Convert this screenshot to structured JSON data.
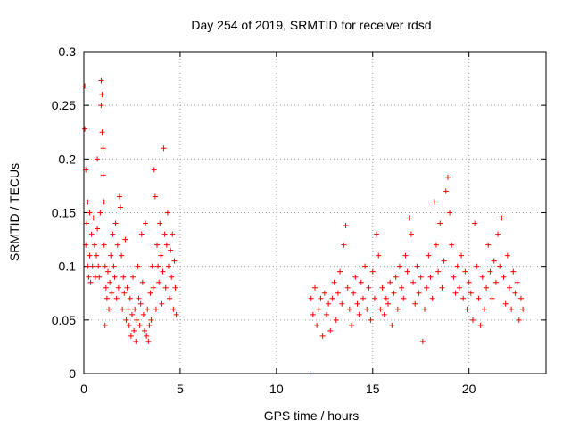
{
  "chart_data": {
    "type": "scatter",
    "title": "Day 254 of 2019, SRMTID for receiver rdsd",
    "xlabel": "GPS time / hours",
    "ylabel": "SRMTID / TECUs",
    "xlim": [
      0,
      24
    ],
    "ylim": [
      0,
      0.3
    ],
    "xticks": [
      0,
      5,
      10,
      15,
      20
    ],
    "xtick_labels": [
      "0",
      "5",
      "10",
      "15",
      "20"
    ],
    "yticks": [
      0,
      0.05,
      0.1,
      0.15,
      0.2,
      0.25,
      0.3
    ],
    "ytick_labels": [
      "0",
      "0.05",
      "0.1",
      "0.15",
      "0.2",
      "0.25",
      "0.3"
    ],
    "grid": true,
    "marker": "+",
    "color": "#ff0000",
    "series": [
      {
        "name": "SRMTID",
        "points": [
          [
            0.05,
            0.268
          ],
          [
            0.05,
            0.228
          ],
          [
            0.1,
            0.19
          ],
          [
            0.1,
            0.12
          ],
          [
            0.15,
            0.14
          ],
          [
            0.2,
            0.16
          ],
          [
            0.2,
            0.1
          ],
          [
            0.25,
            0.09
          ],
          [
            0.3,
            0.15
          ],
          [
            0.3,
            0.11
          ],
          [
            0.35,
            0.085
          ],
          [
            0.4,
            0.13
          ],
          [
            0.45,
            0.1
          ],
          [
            0.5,
            0.145
          ],
          [
            0.55,
            0.12
          ],
          [
            0.6,
            0.09
          ],
          [
            0.65,
            0.11
          ],
          [
            0.7,
            0.2
          ],
          [
            0.7,
            0.135
          ],
          [
            0.75,
            0.1
          ],
          [
            0.8,
            0.09
          ],
          [
            0.85,
            0.15
          ],
          [
            0.9,
            0.273
          ],
          [
            0.9,
            0.25
          ],
          [
            0.95,
            0.26
          ],
          [
            0.95,
            0.225
          ],
          [
            1.0,
            0.21
          ],
          [
            1.0,
            0.185
          ],
          [
            1.05,
            0.16
          ],
          [
            1.05,
            0.12
          ],
          [
            1.1,
            0.1
          ],
          [
            1.1,
            0.045
          ],
          [
            1.15,
            0.08
          ],
          [
            1.2,
            0.07
          ],
          [
            1.25,
            0.095
          ],
          [
            1.3,
            0.06
          ],
          [
            1.35,
            0.085
          ],
          [
            1.4,
            0.11
          ],
          [
            1.45,
            0.075
          ],
          [
            1.5,
            0.13
          ],
          [
            1.55,
            0.1
          ],
          [
            1.6,
            0.09
          ],
          [
            1.65,
            0.14
          ],
          [
            1.7,
            0.07
          ],
          [
            1.75,
            0.12
          ],
          [
            1.8,
            0.08
          ],
          [
            1.85,
            0.165
          ],
          [
            1.9,
            0.155
          ],
          [
            1.95,
            0.11
          ],
          [
            2.0,
            0.06
          ],
          [
            2.05,
            0.09
          ],
          [
            2.1,
            0.075
          ],
          [
            2.15,
            0.125
          ],
          [
            2.2,
            0.05
          ],
          [
            2.25,
            0.08
          ],
          [
            2.3,
            0.06
          ],
          [
            2.35,
            0.045
          ],
          [
            2.4,
            0.07
          ],
          [
            2.45,
            0.035
          ],
          [
            2.5,
            0.055
          ],
          [
            2.55,
            0.09
          ],
          [
            2.6,
            0.04
          ],
          [
            2.65,
            0.06
          ],
          [
            2.7,
            0.03
          ],
          [
            2.75,
            0.05
          ],
          [
            2.8,
            0.1
          ],
          [
            2.85,
            0.07
          ],
          [
            2.9,
            0.045
          ],
          [
            2.95,
            0.065
          ],
          [
            3.0,
            0.13
          ],
          [
            3.05,
            0.085
          ],
          [
            3.1,
            0.055
          ],
          [
            3.15,
            0.04
          ],
          [
            3.2,
            0.14
          ],
          [
            3.25,
            0.035
          ],
          [
            3.3,
            0.06
          ],
          [
            3.35,
            0.03
          ],
          [
            3.4,
            0.045
          ],
          [
            3.45,
            0.075
          ],
          [
            3.5,
            0.05
          ],
          [
            3.55,
            0.1
          ],
          [
            3.6,
            0.08
          ],
          [
            3.65,
            0.19
          ],
          [
            3.7,
            0.165
          ],
          [
            3.75,
            0.06
          ],
          [
            3.8,
            0.12
          ],
          [
            3.85,
            0.1
          ],
          [
            3.9,
            0.085
          ],
          [
            3.95,
            0.14
          ],
          [
            4.0,
            0.11
          ],
          [
            4.05,
            0.065
          ],
          [
            4.1,
            0.095
          ],
          [
            4.15,
            0.21
          ],
          [
            4.2,
            0.13
          ],
          [
            4.25,
            0.08
          ],
          [
            4.3,
            0.12
          ],
          [
            4.35,
            0.15
          ],
          [
            4.4,
            0.1
          ],
          [
            4.45,
            0.07
          ],
          [
            4.5,
            0.115
          ],
          [
            4.55,
            0.09
          ],
          [
            4.6,
            0.13
          ],
          [
            4.65,
            0.06
          ],
          [
            4.7,
            0.105
          ],
          [
            4.75,
            0.08
          ],
          [
            4.8,
            0.055
          ],
          [
            11.75,
            0.0
          ],
          [
            11.8,
            0.07
          ],
          [
            11.9,
            0.055
          ],
          [
            12.0,
            0.08
          ],
          [
            12.1,
            0.045
          ],
          [
            12.2,
            0.06
          ],
          [
            12.3,
            0.07
          ],
          [
            12.4,
            0.035
          ],
          [
            12.5,
            0.075
          ],
          [
            12.6,
            0.055
          ],
          [
            12.7,
            0.065
          ],
          [
            12.8,
            0.04
          ],
          [
            12.9,
            0.07
          ],
          [
            13.0,
            0.085
          ],
          [
            13.1,
            0.05
          ],
          [
            13.2,
            0.075
          ],
          [
            13.3,
            0.095
          ],
          [
            13.4,
            0.065
          ],
          [
            13.5,
            0.12
          ],
          [
            13.6,
            0.138
          ],
          [
            13.7,
            0.08
          ],
          [
            13.8,
            0.06
          ],
          [
            13.9,
            0.045
          ],
          [
            14.0,
            0.075
          ],
          [
            14.1,
            0.09
          ],
          [
            14.2,
            0.065
          ],
          [
            14.3,
            0.055
          ],
          [
            14.4,
            0.085
          ],
          [
            14.5,
            0.07
          ],
          [
            14.6,
            0.1
          ],
          [
            14.7,
            0.06
          ],
          [
            14.8,
            0.08
          ],
          [
            14.9,
            0.05
          ],
          [
            15.0,
            0.095
          ],
          [
            15.1,
            0.07
          ],
          [
            15.2,
            0.13
          ],
          [
            15.3,
            0.11
          ],
          [
            15.4,
            0.06
          ],
          [
            15.5,
            0.08
          ],
          [
            15.6,
            0.055
          ],
          [
            15.7,
            0.07
          ],
          [
            15.8,
            0.065
          ],
          [
            15.9,
            0.085
          ],
          [
            16.0,
            0.045
          ],
          [
            16.1,
            0.075
          ],
          [
            16.2,
            0.09
          ],
          [
            16.3,
            0.06
          ],
          [
            16.4,
            0.1
          ],
          [
            16.5,
            0.08
          ],
          [
            16.6,
            0.07
          ],
          [
            16.7,
            0.11
          ],
          [
            16.8,
            0.095
          ],
          [
            16.9,
            0.145
          ],
          [
            17.0,
            0.13
          ],
          [
            17.1,
            0.085
          ],
          [
            17.2,
            0.065
          ],
          [
            17.3,
            0.1
          ],
          [
            17.4,
            0.075
          ],
          [
            17.5,
            0.09
          ],
          [
            17.6,
            0.03
          ],
          [
            17.7,
            0.06
          ],
          [
            17.8,
            0.08
          ],
          [
            17.9,
            0.11
          ],
          [
            18.0,
            0.09
          ],
          [
            18.1,
            0.07
          ],
          [
            18.2,
            0.16
          ],
          [
            18.3,
            0.12
          ],
          [
            18.4,
            0.095
          ],
          [
            18.5,
            0.14
          ],
          [
            18.6,
            0.08
          ],
          [
            18.7,
            0.105
          ],
          [
            18.8,
            0.17
          ],
          [
            18.9,
            0.183
          ],
          [
            19.0,
            0.15
          ],
          [
            19.1,
            0.12
          ],
          [
            19.2,
            0.09
          ],
          [
            19.3,
            0.075
          ],
          [
            19.4,
            0.1
          ],
          [
            19.5,
            0.08
          ],
          [
            19.6,
            0.11
          ],
          [
            19.7,
            0.07
          ],
          [
            19.8,
            0.095
          ],
          [
            19.9,
            0.06
          ],
          [
            20.0,
            0.085
          ],
          [
            20.1,
            0.075
          ],
          [
            20.2,
            0.05
          ],
          [
            20.3,
            0.14
          ],
          [
            20.4,
            0.1
          ],
          [
            20.5,
            0.07
          ],
          [
            20.6,
            0.045
          ],
          [
            20.7,
            0.09
          ],
          [
            20.8,
            0.06
          ],
          [
            20.9,
            0.08
          ],
          [
            21.0,
            0.12
          ],
          [
            21.1,
            0.095
          ],
          [
            21.2,
            0.07
          ],
          [
            21.3,
            0.105
          ],
          [
            21.4,
            0.085
          ],
          [
            21.5,
            0.13
          ],
          [
            21.6,
            0.1
          ],
          [
            21.7,
            0.145
          ],
          [
            21.8,
            0.09
          ],
          [
            21.9,
            0.065
          ],
          [
            22.0,
            0.11
          ],
          [
            22.1,
            0.08
          ],
          [
            22.2,
            0.06
          ],
          [
            22.3,
            0.095
          ],
          [
            22.4,
            0.075
          ],
          [
            22.5,
            0.085
          ],
          [
            22.6,
            0.05
          ],
          [
            22.7,
            0.07
          ],
          [
            22.8,
            0.06
          ]
        ]
      }
    ]
  }
}
